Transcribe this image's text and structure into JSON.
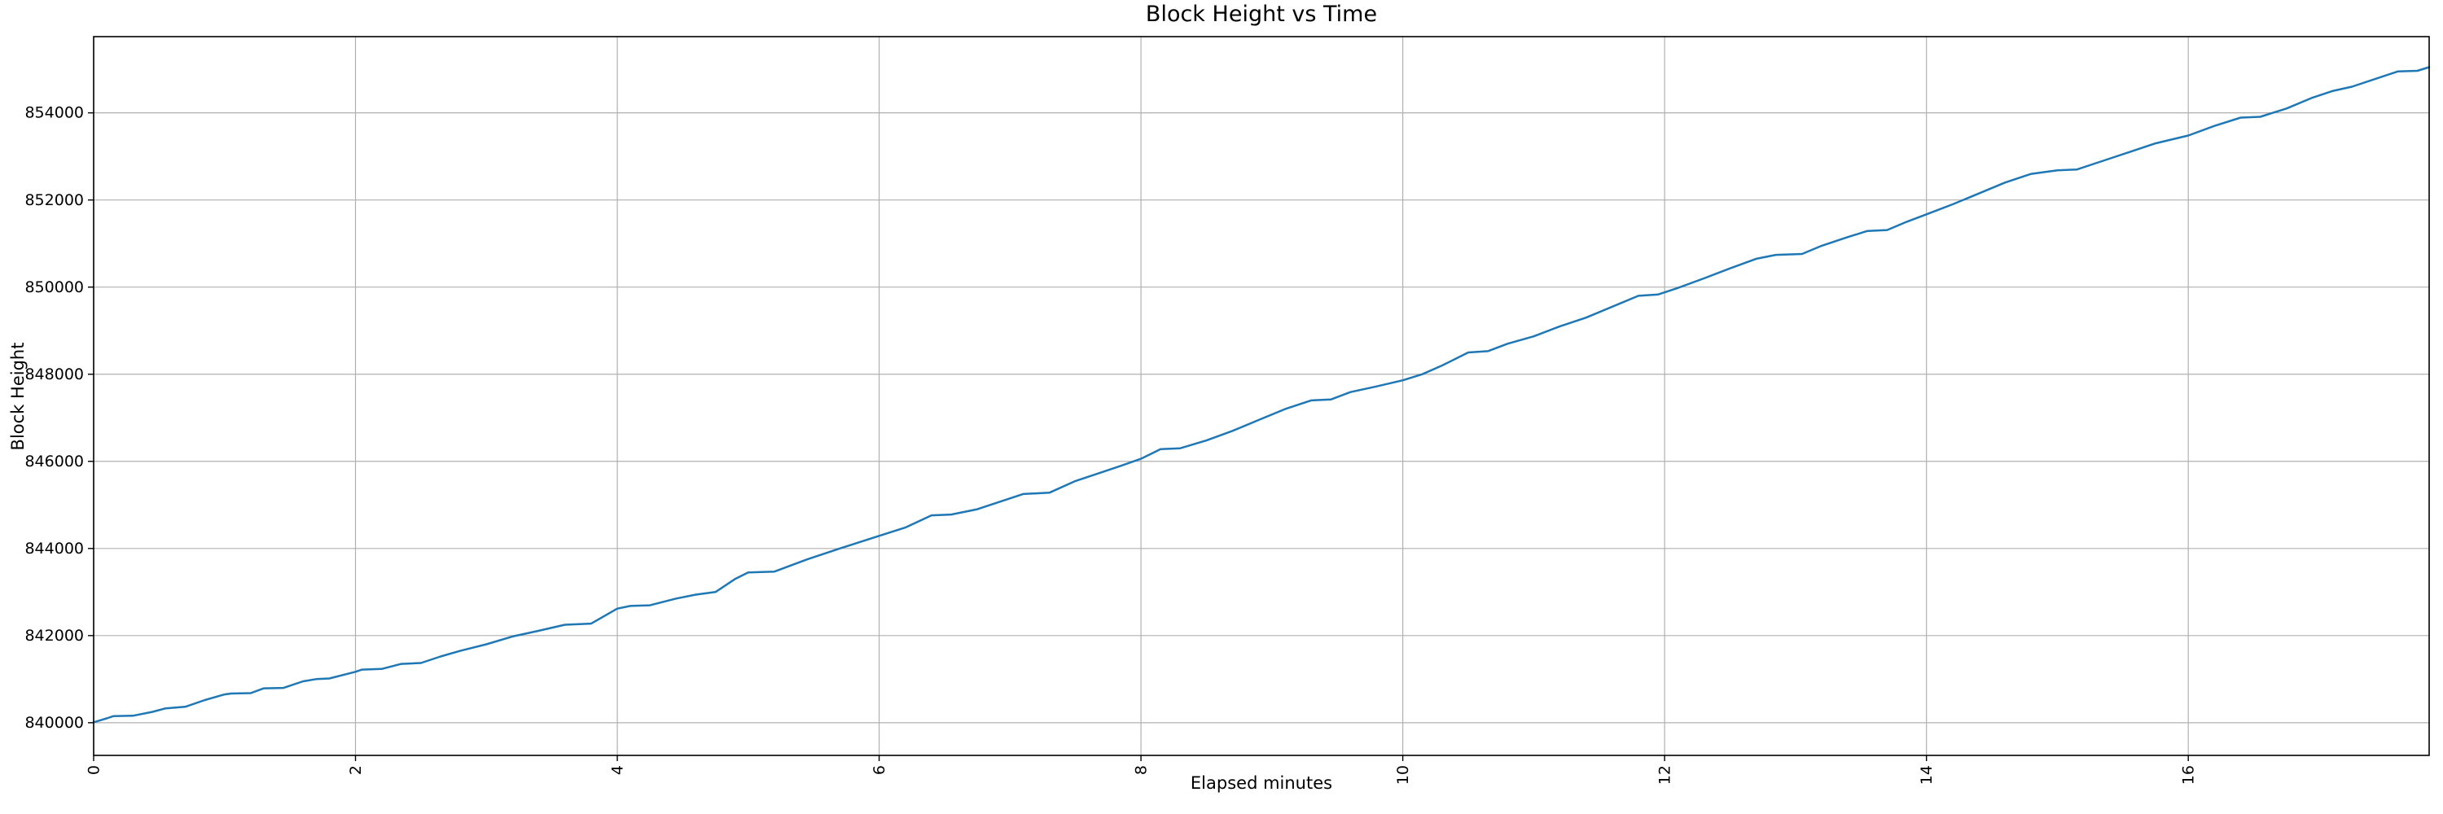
{
  "chart_data": {
    "type": "line",
    "title": "Block Height vs Time",
    "xlabel": "Elapsed minutes",
    "ylabel": "Block Height",
    "xlim": [
      0,
      17.84
    ],
    "ylim": [
      839250,
      855750
    ],
    "x_ticks": [
      0,
      2,
      4,
      6,
      8,
      10,
      12,
      14,
      16
    ],
    "y_ticks": [
      840000,
      842000,
      844000,
      846000,
      848000,
      850000,
      852000,
      854000
    ],
    "grid": true,
    "grid_color": "#b0b0b0",
    "spine_color": "#000000",
    "tick_label_color": "#000000",
    "x_tick_rotation_deg": 90,
    "legend": "none",
    "series": [
      {
        "name": "block-height",
        "color": "#1f77b4",
        "line_width": 2.5,
        "x": [
          0.0,
          0.1,
          0.15,
          0.3,
          0.45,
          0.55,
          0.7,
          0.85,
          1.0,
          1.05,
          1.2,
          1.3,
          1.45,
          1.6,
          1.7,
          1.8,
          2.0,
          2.05,
          2.2,
          2.35,
          2.5,
          2.65,
          2.8,
          3.0,
          3.2,
          3.4,
          3.6,
          3.8,
          4.0,
          4.1,
          4.25,
          4.45,
          4.6,
          4.75,
          4.9,
          5.0,
          5.2,
          5.45,
          5.7,
          6.0,
          6.2,
          6.4,
          6.55,
          6.75,
          6.9,
          7.1,
          7.3,
          7.5,
          7.7,
          7.85,
          8.0,
          8.15,
          8.3,
          8.5,
          8.7,
          8.9,
          9.1,
          9.3,
          9.45,
          9.6,
          9.8,
          10.0,
          10.15,
          10.3,
          10.5,
          10.65,
          10.8,
          11.0,
          11.2,
          11.4,
          11.6,
          11.8,
          11.95,
          12.1,
          12.3,
          12.5,
          12.7,
          12.85,
          13.05,
          13.2,
          13.4,
          13.55,
          13.7,
          13.85,
          14.0,
          14.2,
          14.4,
          14.6,
          14.8,
          15.0,
          15.15,
          15.35,
          15.55,
          15.75,
          16.0,
          16.2,
          16.4,
          16.55,
          16.75,
          16.95,
          17.1,
          17.25,
          17.45,
          17.6,
          17.75,
          17.84
        ],
        "y": [
          840010,
          840100,
          840150,
          840160,
          840250,
          840330,
          840365,
          840520,
          840650,
          840670,
          840680,
          840790,
          840800,
          840950,
          841000,
          841015,
          841170,
          841220,
          841235,
          841350,
          841370,
          841520,
          841650,
          841800,
          841980,
          842110,
          842250,
          842275,
          842620,
          842680,
          842695,
          842850,
          842940,
          843000,
          843300,
          843450,
          843470,
          843750,
          844000,
          844290,
          844480,
          844760,
          844780,
          844900,
          845050,
          845250,
          845280,
          845550,
          845750,
          845900,
          846060,
          846280,
          846300,
          846480,
          846700,
          846950,
          847200,
          847400,
          847420,
          847590,
          847720,
          847860,
          848000,
          848200,
          848500,
          848530,
          848700,
          848870,
          849100,
          849300,
          849550,
          849800,
          849830,
          849980,
          850200,
          850430,
          850650,
          850740,
          850760,
          850950,
          851150,
          851290,
          851310,
          851500,
          851670,
          851900,
          852150,
          852400,
          852600,
          852680,
          852700,
          852900,
          853100,
          853300,
          853480,
          853700,
          853890,
          853910,
          854100,
          854350,
          854500,
          854600,
          854800,
          854950,
          854965,
          855050
        ]
      }
    ]
  }
}
